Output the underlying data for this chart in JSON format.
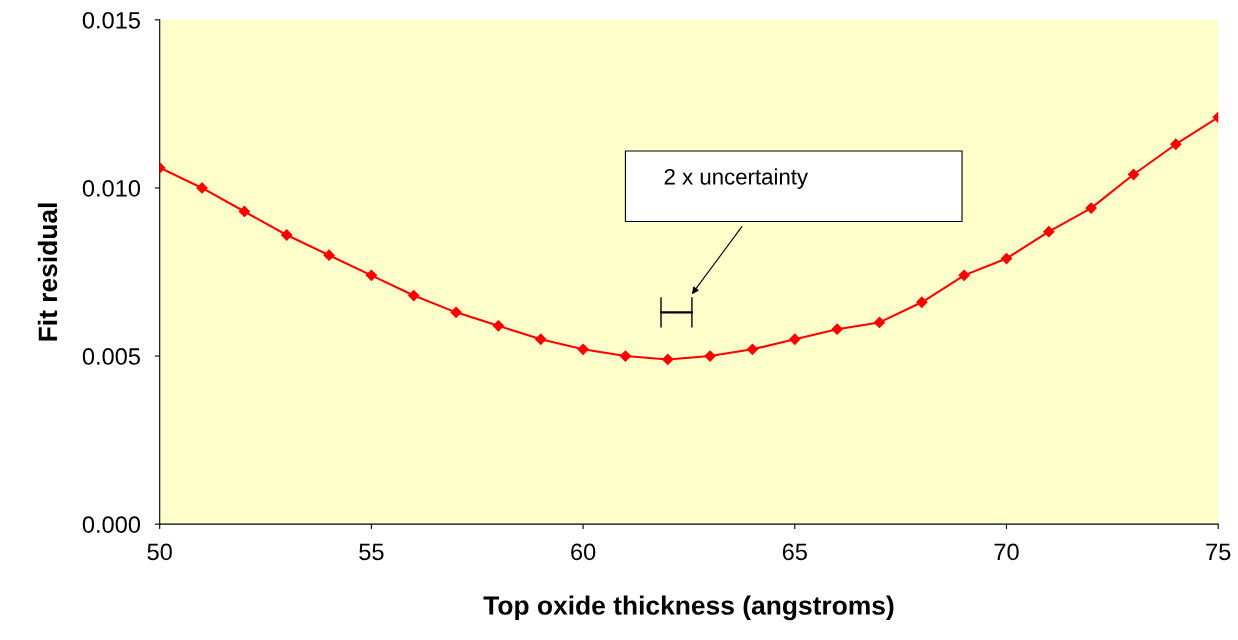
{
  "chart_data": {
    "type": "line",
    "xlabel": "Top oxide thickness (angstroms)",
    "ylabel": "Fit residual",
    "xlim": [
      50,
      75
    ],
    "xticks": [
      50,
      55,
      60,
      65,
      70,
      75
    ],
    "ylim": [
      0,
      0.015
    ],
    "yticks": [
      {
        "value": 0,
        "label": "0.000"
      },
      {
        "value": 0.005,
        "label": "0.005"
      },
      {
        "value": 0.01,
        "label": "0.010"
      },
      {
        "value": 0.015,
        "label": "0.015"
      }
    ],
    "grid": false,
    "legend": false,
    "series": [
      {
        "color": "#ff0000",
        "marker": "diamond",
        "line_style": "solid",
        "x": [
          50,
          51,
          52,
          53,
          54,
          55,
          56,
          57,
          58,
          59,
          60,
          61,
          62,
          63,
          64,
          65,
          66,
          67,
          68,
          69,
          70,
          71,
          72,
          73,
          74,
          75
        ],
        "values": [
          0.0106,
          0.01,
          0.0093,
          0.0086,
          0.008,
          0.0074,
          0.0068,
          0.0063,
          0.0059,
          0.0055,
          0.0052,
          0.005,
          0.0049,
          0.005,
          0.0052,
          0.0055,
          0.0058,
          0.006,
          0.0066,
          0.0074,
          0.0079,
          0.0087,
          0.0094,
          0.0104,
          0.0113,
          0.0121
        ]
      },
      {
        "color": "#000000",
        "marker": "none",
        "x": [
          61.84,
          62.57
        ],
        "values": [
          0.0063,
          0.0063
        ],
        "errors": [
          0.00045,
          0.00045
        ]
      }
    ],
    "annotations": [
      "2 x uncertainty"
    ]
  }
}
